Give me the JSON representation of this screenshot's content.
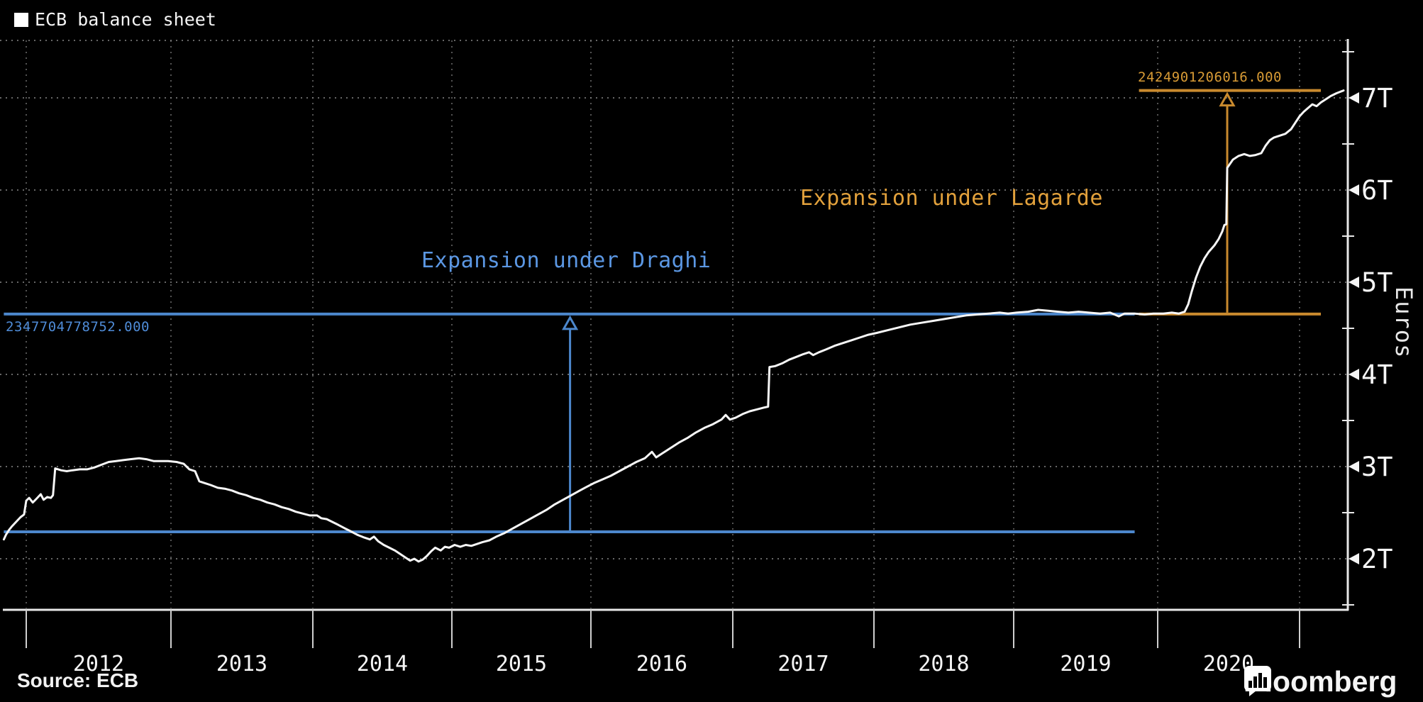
{
  "legend": {
    "label": "ECB balance sheet",
    "swatch_color": "#ffffff"
  },
  "footer": {
    "source": "Source: ECB",
    "brand": "Bloomberg"
  },
  "colors": {
    "background": "#000000",
    "series": "#f7f7f7",
    "blue_line": "#4c87cc",
    "blue_text": "#5b97e3",
    "orange_line": "#c98a2e",
    "orange_text": "#e2a13c",
    "grid": "#8a8a8a",
    "axis": "#e8e8e8",
    "tick_text": "#f5f5f5"
  },
  "chart_data": {
    "type": "line",
    "title": "ECB balance sheet",
    "ylabel": "Euros",
    "y_unit": "trillions of euros",
    "grid": "dotted",
    "x_ticks": [
      "2012",
      "2013",
      "2014",
      "2015",
      "2016",
      "2017",
      "2018",
      "2019",
      "2020"
    ],
    "x_range_years": [
      2011.84,
      2021.34
    ],
    "y_tick_values": [
      2,
      3,
      4,
      5,
      6,
      7
    ],
    "y_tick_labels": [
      "2T",
      "3T",
      "4T",
      "5T",
      "6T",
      "7T"
    ],
    "y_minor_tick_values": [
      1.5,
      2.5,
      3.5,
      4.5,
      5.5,
      6.5,
      7.5
    ],
    "ylim": [
      1.45,
      7.6
    ],
    "series": [
      {
        "name": "ECB balance sheet",
        "color": "#f7f7f7",
        "points": [
          [
            2011.845,
            2.21
          ],
          [
            2011.86,
            2.26
          ],
          [
            2011.88,
            2.31
          ],
          [
            2011.9,
            2.35
          ],
          [
            2011.93,
            2.4
          ],
          [
            2011.96,
            2.45
          ],
          [
            2011.985,
            2.48
          ],
          [
            2012.0,
            2.63
          ],
          [
            2012.02,
            2.66
          ],
          [
            2012.045,
            2.61
          ],
          [
            2012.07,
            2.65
          ],
          [
            2012.1,
            2.7
          ],
          [
            2012.12,
            2.64
          ],
          [
            2012.145,
            2.67
          ],
          [
            2012.17,
            2.66
          ],
          [
            2012.185,
            2.69
          ],
          [
            2012.2,
            2.98
          ],
          [
            2012.24,
            2.96
          ],
          [
            2012.28,
            2.95
          ],
          [
            2012.32,
            2.96
          ],
          [
            2012.37,
            2.97
          ],
          [
            2012.42,
            2.97
          ],
          [
            2012.47,
            2.99
          ],
          [
            2012.52,
            3.02
          ],
          [
            2012.57,
            3.05
          ],
          [
            2012.62,
            3.06
          ],
          [
            2012.67,
            3.07
          ],
          [
            2012.72,
            3.08
          ],
          [
            2012.78,
            3.09
          ],
          [
            2012.83,
            3.08
          ],
          [
            2012.88,
            3.06
          ],
          [
            2012.93,
            3.06
          ],
          [
            2012.98,
            3.06
          ],
          [
            2013.04,
            3.05
          ],
          [
            2013.09,
            3.03
          ],
          [
            2013.13,
            2.97
          ],
          [
            2013.17,
            2.95
          ],
          [
            2013.2,
            2.84
          ],
          [
            2013.24,
            2.82
          ],
          [
            2013.28,
            2.8
          ],
          [
            2013.33,
            2.77
          ],
          [
            2013.38,
            2.76
          ],
          [
            2013.43,
            2.74
          ],
          [
            2013.48,
            2.71
          ],
          [
            2013.53,
            2.69
          ],
          [
            2013.58,
            2.66
          ],
          [
            2013.63,
            2.64
          ],
          [
            2013.68,
            2.61
          ],
          [
            2013.73,
            2.59
          ],
          [
            2013.78,
            2.56
          ],
          [
            2013.83,
            2.54
          ],
          [
            2013.88,
            2.51
          ],
          [
            2013.93,
            2.49
          ],
          [
            2013.98,
            2.47
          ],
          [
            2014.03,
            2.47
          ],
          [
            2014.06,
            2.44
          ],
          [
            2014.1,
            2.43
          ],
          [
            2014.14,
            2.4
          ],
          [
            2014.18,
            2.37
          ],
          [
            2014.23,
            2.33
          ],
          [
            2014.27,
            2.3
          ],
          [
            2014.32,
            2.26
          ],
          [
            2014.37,
            2.23
          ],
          [
            2014.41,
            2.21
          ],
          [
            2014.44,
            2.24
          ],
          [
            2014.47,
            2.19
          ],
          [
            2014.51,
            2.15
          ],
          [
            2014.55,
            2.12
          ],
          [
            2014.59,
            2.09
          ],
          [
            2014.63,
            2.05
          ],
          [
            2014.67,
            2.01
          ],
          [
            2014.7,
            1.98
          ],
          [
            2014.73,
            2.0
          ],
          [
            2014.76,
            1.97
          ],
          [
            2014.79,
            1.99
          ],
          [
            2014.82,
            2.03
          ],
          [
            2014.85,
            2.08
          ],
          [
            2014.88,
            2.12
          ],
          [
            2014.92,
            2.09
          ],
          [
            2014.95,
            2.13
          ],
          [
            2014.98,
            2.12
          ],
          [
            2015.02,
            2.15
          ],
          [
            2015.06,
            2.13
          ],
          [
            2015.1,
            2.15
          ],
          [
            2015.14,
            2.14
          ],
          [
            2015.18,
            2.16
          ],
          [
            2015.22,
            2.18
          ],
          [
            2015.27,
            2.2
          ],
          [
            2015.32,
            2.24
          ],
          [
            2015.38,
            2.28
          ],
          [
            2015.44,
            2.33
          ],
          [
            2015.5,
            2.38
          ],
          [
            2015.56,
            2.43
          ],
          [
            2015.62,
            2.48
          ],
          [
            2015.68,
            2.53
          ],
          [
            2015.74,
            2.59
          ],
          [
            2015.8,
            2.64
          ],
          [
            2015.86,
            2.69
          ],
          [
            2015.92,
            2.74
          ],
          [
            2015.97,
            2.78
          ],
          [
            2016.02,
            2.82
          ],
          [
            2016.08,
            2.86
          ],
          [
            2016.14,
            2.9
          ],
          [
            2016.2,
            2.95
          ],
          [
            2016.26,
            3.0
          ],
          [
            2016.32,
            3.05
          ],
          [
            2016.38,
            3.09
          ],
          [
            2016.43,
            3.16
          ],
          [
            2016.46,
            3.1
          ],
          [
            2016.5,
            3.14
          ],
          [
            2016.56,
            3.2
          ],
          [
            2016.62,
            3.26
          ],
          [
            2016.68,
            3.31
          ],
          [
            2016.74,
            3.37
          ],
          [
            2016.8,
            3.42
          ],
          [
            2016.86,
            3.46
          ],
          [
            2016.92,
            3.51
          ],
          [
            2016.95,
            3.56
          ],
          [
            2016.98,
            3.51
          ],
          [
            2017.02,
            3.53
          ],
          [
            2017.07,
            3.57
          ],
          [
            2017.12,
            3.6
          ],
          [
            2017.17,
            3.62
          ],
          [
            2017.22,
            3.64
          ],
          [
            2017.25,
            3.65
          ],
          [
            2017.26,
            4.08
          ],
          [
            2017.3,
            4.09
          ],
          [
            2017.35,
            4.12
          ],
          [
            2017.4,
            4.16
          ],
          [
            2017.45,
            4.19
          ],
          [
            2017.5,
            4.22
          ],
          [
            2017.54,
            4.24
          ],
          [
            2017.57,
            4.21
          ],
          [
            2017.61,
            4.24
          ],
          [
            2017.66,
            4.27
          ],
          [
            2017.72,
            4.31
          ],
          [
            2017.78,
            4.34
          ],
          [
            2017.84,
            4.37
          ],
          [
            2017.9,
            4.4
          ],
          [
            2017.96,
            4.43
          ],
          [
            2018.02,
            4.45
          ],
          [
            2018.1,
            4.48
          ],
          [
            2018.18,
            4.51
          ],
          [
            2018.26,
            4.54
          ],
          [
            2018.34,
            4.56
          ],
          [
            2018.42,
            4.58
          ],
          [
            2018.5,
            4.6
          ],
          [
            2018.58,
            4.62
          ],
          [
            2018.66,
            4.64
          ],
          [
            2018.74,
            4.65
          ],
          [
            2018.82,
            4.66
          ],
          [
            2018.9,
            4.67
          ],
          [
            2018.96,
            4.66
          ],
          [
            2019.02,
            4.67
          ],
          [
            2019.1,
            4.68
          ],
          [
            2019.17,
            4.7
          ],
          [
            2019.24,
            4.69
          ],
          [
            2019.31,
            4.68
          ],
          [
            2019.38,
            4.67
          ],
          [
            2019.45,
            4.68
          ],
          [
            2019.52,
            4.67
          ],
          [
            2019.6,
            4.66
          ],
          [
            2019.67,
            4.67
          ],
          [
            2019.73,
            4.63
          ],
          [
            2019.77,
            4.66
          ],
          [
            2019.84,
            4.66
          ],
          [
            2019.91,
            4.65
          ],
          [
            2019.97,
            4.66
          ],
          [
            2020.04,
            4.66
          ],
          [
            2020.1,
            4.67
          ],
          [
            2020.15,
            4.66
          ],
          [
            2020.19,
            4.68
          ],
          [
            2020.215,
            4.76
          ],
          [
            2020.24,
            4.9
          ],
          [
            2020.27,
            5.05
          ],
          [
            2020.3,
            5.17
          ],
          [
            2020.33,
            5.26
          ],
          [
            2020.36,
            5.33
          ],
          [
            2020.4,
            5.4
          ],
          [
            2020.43,
            5.47
          ],
          [
            2020.455,
            5.55
          ],
          [
            2020.47,
            5.62
          ],
          [
            2020.484,
            5.63
          ],
          [
            2020.49,
            6.24
          ],
          [
            2020.53,
            6.33
          ],
          [
            2020.57,
            6.37
          ],
          [
            2020.61,
            6.39
          ],
          [
            2020.65,
            6.37
          ],
          [
            2020.69,
            6.38
          ],
          [
            2020.73,
            6.4
          ],
          [
            2020.76,
            6.48
          ],
          [
            2020.79,
            6.54
          ],
          [
            2020.82,
            6.57
          ],
          [
            2020.86,
            6.59
          ],
          [
            2020.9,
            6.61
          ],
          [
            2020.94,
            6.66
          ],
          [
            2020.97,
            6.73
          ],
          [
            2021.0,
            6.8
          ],
          [
            2021.03,
            6.85
          ],
          [
            2021.06,
            6.89
          ],
          [
            2021.09,
            6.93
          ],
          [
            2021.12,
            6.91
          ],
          [
            2021.15,
            6.95
          ],
          [
            2021.18,
            6.98
          ],
          [
            2021.22,
            7.02
          ],
          [
            2021.26,
            7.05
          ],
          [
            2021.31,
            7.08
          ]
        ]
      }
    ],
    "measures": [
      {
        "id": "draghi",
        "annotation": "Expansion under Draghi",
        "value_label": "2347704778752.000",
        "line_color": "#4c87cc",
        "text_color": "#5b97e3",
        "level_top_trillions": 4.655,
        "level_bottom_trillions": 2.292,
        "span_years": [
          2011.845,
          2019.84
        ],
        "arrow_year": 2015.85
      },
      {
        "id": "lagarde",
        "annotation": "Expansion under Lagarde",
        "value_label": "2424901206016.000",
        "line_color": "#c98a2e",
        "text_color": "#e2a13c",
        "level_top_trillions": 7.08,
        "level_bottom_trillions": 4.655,
        "span_years": [
          2019.87,
          2021.15
        ],
        "arrow_year": 2020.49
      }
    ]
  }
}
